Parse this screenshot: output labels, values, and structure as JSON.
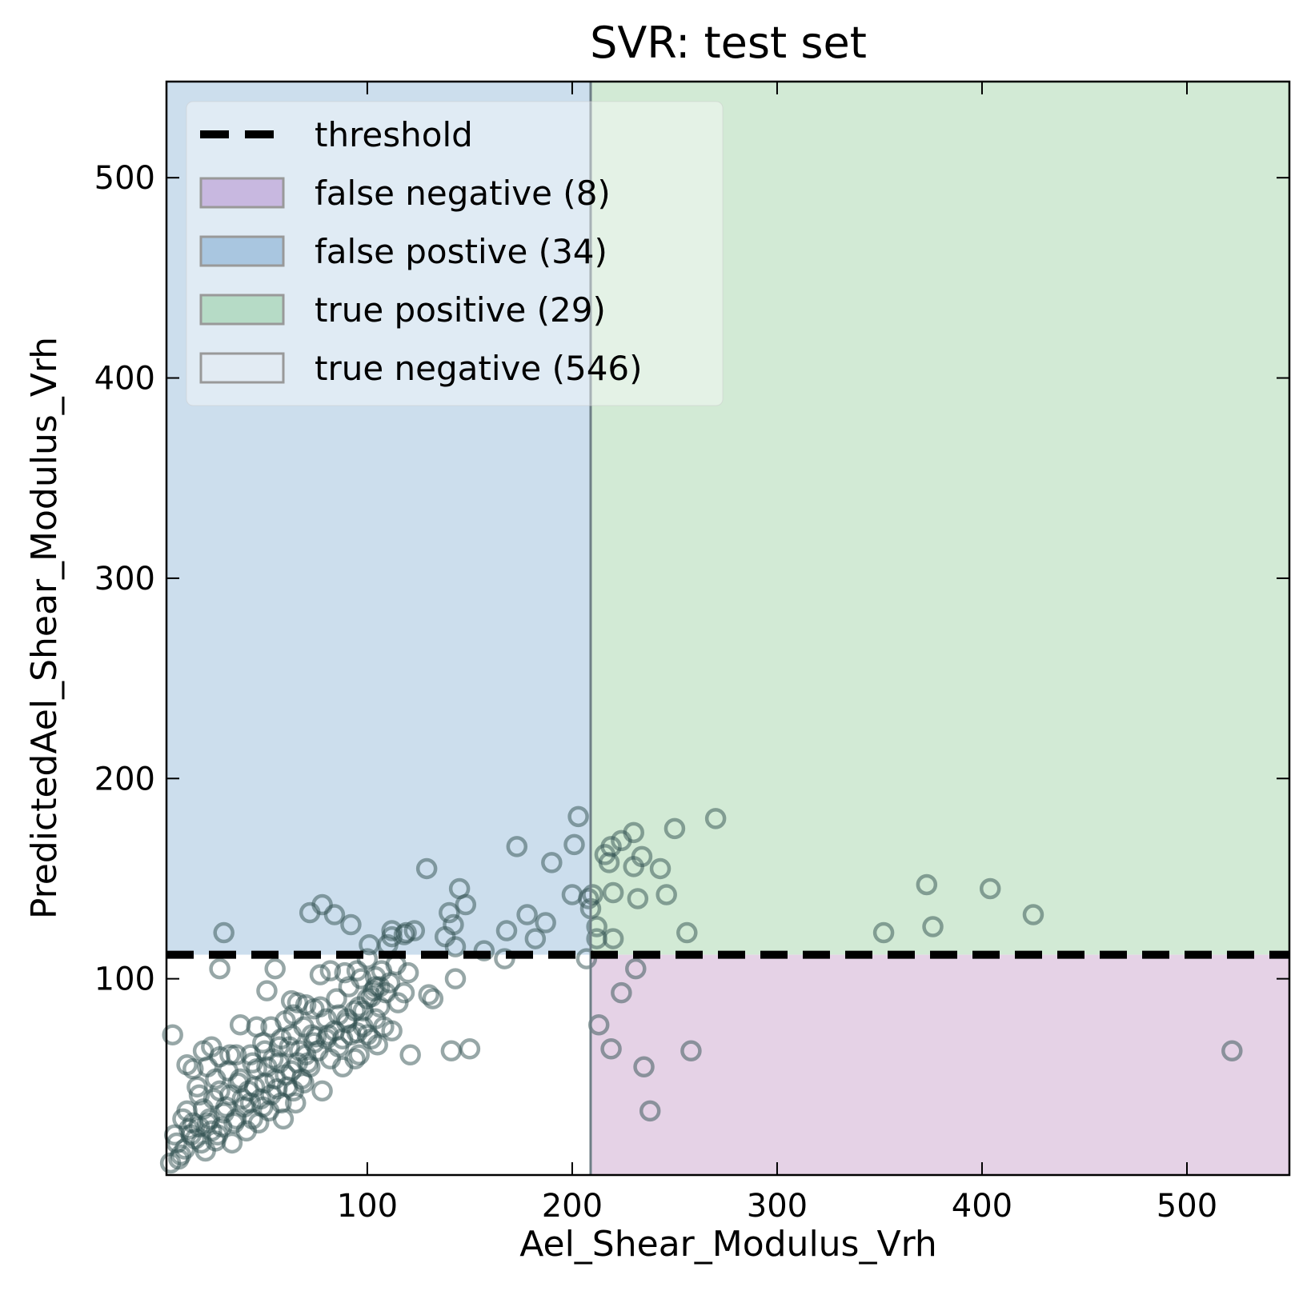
{
  "chart_data": {
    "type": "scatter",
    "title": "SVR: test set",
    "xlabel": "Ael_Shear_Modulus_Vrh",
    "ylabel": "PredictedAel_Shear_Modulus_Vrh",
    "xlim": [
      2,
      550
    ],
    "ylim": [
      2,
      548
    ],
    "xticks": [
      100,
      200,
      300,
      400,
      500
    ],
    "yticks": [
      100,
      200,
      300,
      400,
      500
    ],
    "threshold": {
      "x": 209,
      "y": 112
    },
    "grid": false,
    "legend_position": "top-left",
    "legend": [
      {
        "label": "threshold",
        "kind": "dash",
        "color": "#000000"
      },
      {
        "label": "false negative (8)",
        "kind": "patch",
        "color": "#c8b8e0"
      },
      {
        "label": "false postive (34)",
        "kind": "patch",
        "color": "#a9c6e0"
      },
      {
        "label": "true positive (29)",
        "kind": "patch",
        "color": "#b6dbc6"
      },
      {
        "label": "true negative (546)",
        "kind": "patch",
        "color": "#e2ebf3"
      }
    ],
    "regions": {
      "false_positive": {
        "color": "#ccdeed"
      },
      "true_positive": {
        "color": "#d2ead5"
      },
      "false_negative": {
        "color": "#e5d2e6"
      },
      "true_negative": {
        "color": "#ffffff"
      }
    },
    "points": [
      [
        203,
        181
      ],
      [
        270,
        180
      ],
      [
        250,
        175
      ],
      [
        230,
        173
      ],
      [
        224,
        169
      ],
      [
        219,
        166
      ],
      [
        173,
        166
      ],
      [
        201,
        167
      ],
      [
        216,
        162
      ],
      [
        234,
        161
      ],
      [
        190,
        158
      ],
      [
        218,
        158
      ],
      [
        129,
        155
      ],
      [
        243,
        155
      ],
      [
        230,
        156
      ],
      [
        145,
        145
      ],
      [
        373,
        147
      ],
      [
        404,
        145
      ],
      [
        200,
        142
      ],
      [
        210,
        142
      ],
      [
        246,
        142
      ],
      [
        220,
        143
      ],
      [
        78,
        137
      ],
      [
        148,
        137
      ],
      [
        232,
        140
      ],
      [
        208,
        140
      ],
      [
        209,
        135
      ],
      [
        72,
        133
      ],
      [
        84,
        132
      ],
      [
        140,
        133
      ],
      [
        178,
        132
      ],
      [
        425,
        132
      ],
      [
        92,
        127
      ],
      [
        142,
        127
      ],
      [
        187,
        128
      ],
      [
        112,
        124
      ],
      [
        212,
        126
      ],
      [
        376,
        126
      ],
      [
        30,
        123
      ],
      [
        119,
        123
      ],
      [
        118,
        122
      ],
      [
        123,
        124
      ],
      [
        168,
        124
      ],
      [
        352,
        123
      ],
      [
        256,
        123
      ],
      [
        182,
        120
      ],
      [
        112,
        121
      ],
      [
        138,
        121
      ],
      [
        212,
        120
      ],
      [
        220,
        120
      ],
      [
        101,
        117
      ],
      [
        110,
        117
      ],
      [
        143,
        116
      ],
      [
        157,
        114
      ],
      [
        167,
        110
      ],
      [
        207,
        110
      ],
      [
        100,
        110
      ],
      [
        114,
        107
      ],
      [
        120,
        103
      ],
      [
        143,
        100
      ],
      [
        28,
        105
      ],
      [
        55,
        105
      ],
      [
        77,
        102
      ],
      [
        82,
        104
      ],
      [
        89,
        103
      ],
      [
        95,
        104
      ],
      [
        104,
        101
      ],
      [
        106,
        96
      ],
      [
        109,
        93
      ],
      [
        118,
        93
      ],
      [
        102,
        91
      ],
      [
        130,
        92
      ],
      [
        132,
        90
      ],
      [
        231,
        105
      ],
      [
        224,
        93
      ],
      [
        51,
        94
      ],
      [
        63,
        89
      ],
      [
        70,
        87
      ],
      [
        74,
        85
      ],
      [
        80,
        80
      ],
      [
        86,
        82
      ],
      [
        90,
        78
      ],
      [
        96,
        86
      ],
      [
        98,
        84
      ],
      [
        104,
        80
      ],
      [
        108,
        76
      ],
      [
        112,
        74
      ],
      [
        105,
        67
      ],
      [
        100,
        72
      ],
      [
        95,
        73
      ],
      [
        5,
        72
      ],
      [
        12,
        57
      ],
      [
        15,
        55
      ],
      [
        17,
        46
      ],
      [
        20,
        64
      ],
      [
        24,
        66
      ],
      [
        28,
        61
      ],
      [
        33,
        62
      ],
      [
        38,
        77
      ],
      [
        46,
        76
      ],
      [
        53,
        76
      ],
      [
        60,
        79
      ],
      [
        64,
        82
      ],
      [
        69,
        76
      ],
      [
        75,
        71
      ],
      [
        81,
        72
      ],
      [
        88,
        70
      ],
      [
        94,
        60
      ],
      [
        121,
        62
      ],
      [
        141,
        64
      ],
      [
        150,
        65
      ],
      [
        213,
        77
      ],
      [
        219,
        65
      ],
      [
        235,
        56
      ],
      [
        238,
        34
      ],
      [
        258,
        64
      ],
      [
        522,
        64
      ],
      [
        10,
        30
      ],
      [
        13,
        25
      ],
      [
        16,
        20
      ],
      [
        20,
        35
      ],
      [
        22,
        28
      ],
      [
        25,
        40
      ],
      [
        27,
        22
      ],
      [
        30,
        33
      ],
      [
        33,
        42
      ],
      [
        35,
        28
      ],
      [
        38,
        50
      ],
      [
        40,
        36
      ],
      [
        42,
        44
      ],
      [
        44,
        30
      ],
      [
        46,
        55
      ],
      [
        48,
        40
      ],
      [
        50,
        48
      ],
      [
        52,
        34
      ],
      [
        54,
        60
      ],
      [
        56,
        45
      ],
      [
        58,
        38
      ],
      [
        60,
        52
      ],
      [
        62,
        66
      ],
      [
        64,
        44
      ],
      [
        66,
        58
      ],
      [
        68,
        50
      ],
      [
        70,
        62
      ],
      [
        72,
        56
      ],
      [
        74,
        68
      ],
      [
        76,
        64
      ],
      [
        78,
        44
      ],
      [
        80,
        70
      ],
      [
        82,
        60
      ],
      [
        84,
        74
      ],
      [
        86,
        66
      ],
      [
        88,
        56
      ],
      [
        90,
        80
      ],
      [
        92,
        72
      ],
      [
        94,
        84
      ],
      [
        96,
        62
      ],
      [
        98,
        76
      ],
      [
        100,
        90
      ],
      [
        102,
        70
      ],
      [
        104,
        96
      ],
      [
        106,
        86
      ],
      [
        7,
        18
      ],
      [
        9,
        12
      ],
      [
        11,
        15
      ],
      [
        14,
        22
      ],
      [
        18,
        26
      ],
      [
        21,
        14
      ],
      [
        23,
        30
      ],
      [
        26,
        19
      ],
      [
        29,
        26
      ],
      [
        31,
        36
      ],
      [
        34,
        18
      ],
      [
        36,
        30
      ],
      [
        39,
        40
      ],
      [
        41,
        24
      ],
      [
        43,
        38
      ],
      [
        45,
        46
      ],
      [
        47,
        28
      ],
      [
        49,
        36
      ],
      [
        51,
        56
      ],
      [
        53,
        42
      ],
      [
        55,
        50
      ],
      [
        57,
        58
      ],
      [
        59,
        30
      ],
      [
        61,
        46
      ],
      [
        63,
        54
      ],
      [
        65,
        38
      ],
      [
        67,
        64
      ],
      [
        69,
        48
      ],
      [
        71,
        58
      ],
      [
        73,
        72
      ],
      [
        4,
        8
      ],
      [
        6,
        22
      ],
      [
        8,
        10
      ],
      [
        12,
        34
      ],
      [
        15,
        28
      ],
      [
        19,
        18
      ],
      [
        24,
        24
      ],
      [
        28,
        44
      ],
      [
        32,
        54
      ],
      [
        37,
        48
      ],
      [
        43,
        62
      ],
      [
        49,
        68
      ],
      [
        57,
        66
      ],
      [
        63,
        72
      ],
      [
        77,
        86
      ],
      [
        85,
        90
      ],
      [
        91,
        96
      ],
      [
        97,
        100
      ],
      [
        103,
        94
      ],
      [
        107,
        104
      ],
      [
        111,
        98
      ],
      [
        115,
        88
      ],
      [
        66,
        88
      ],
      [
        58,
        70
      ],
      [
        50,
        64
      ],
      [
        44,
        58
      ],
      [
        36,
        62
      ],
      [
        26,
        50
      ],
      [
        18,
        42
      ],
      [
        22,
        56
      ]
    ]
  }
}
